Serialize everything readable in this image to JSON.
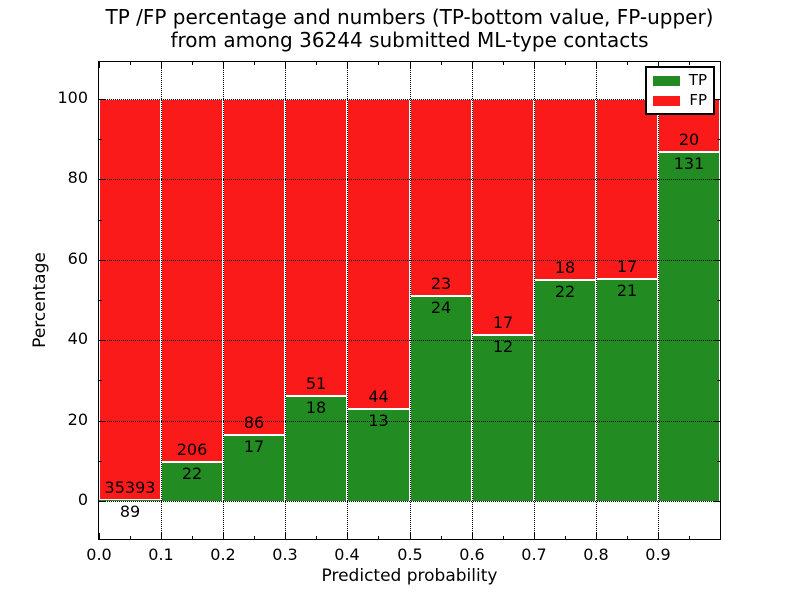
{
  "chart_data": {
    "type": "bar",
    "stacked": true,
    "title_line1": "TP /FP percentage and numbers (TP-bottom value, FP-upper)",
    "title_line2": "from among 36244 submitted ML-type contacts",
    "xlabel": "Predicted probability",
    "ylabel": "Percentage",
    "x_tick_labels": [
      "0.0",
      "0.1",
      "0.2",
      "0.3",
      "0.4",
      "0.5",
      "0.6",
      "0.7",
      "0.8",
      "0.9"
    ],
    "y_tick_labels": [
      "0",
      "20",
      "40",
      "60",
      "80",
      "100"
    ],
    "xlim": [
      0.0,
      1.0
    ],
    "ylim": [
      -9.5,
      109.5
    ],
    "grid": "dotted",
    "legend": {
      "position": "upper-right",
      "entries": [
        {
          "label": "TP",
          "color": "#228b22"
        },
        {
          "label": "FP",
          "color": "#fa1a1a"
        }
      ]
    },
    "bins": [
      {
        "x_start": 0.0,
        "x_end": 0.1,
        "tp": 89,
        "fp": 35393
      },
      {
        "x_start": 0.1,
        "x_end": 0.2,
        "tp": 22,
        "fp": 206
      },
      {
        "x_start": 0.2,
        "x_end": 0.3,
        "tp": 17,
        "fp": 86
      },
      {
        "x_start": 0.3,
        "x_end": 0.4,
        "tp": 18,
        "fp": 51
      },
      {
        "x_start": 0.4,
        "x_end": 0.5,
        "tp": 13,
        "fp": 44
      },
      {
        "x_start": 0.5,
        "x_end": 0.6,
        "tp": 24,
        "fp": 23
      },
      {
        "x_start": 0.6,
        "x_end": 0.7,
        "tp": 12,
        "fp": 17
      },
      {
        "x_start": 0.7,
        "x_end": 0.8,
        "tp": 22,
        "fp": 18
      },
      {
        "x_start": 0.8,
        "x_end": 0.9,
        "tp": 21,
        "fp": 17
      },
      {
        "x_start": 0.9,
        "x_end": 1.0,
        "tp": 131,
        "fp": 20
      }
    ]
  }
}
